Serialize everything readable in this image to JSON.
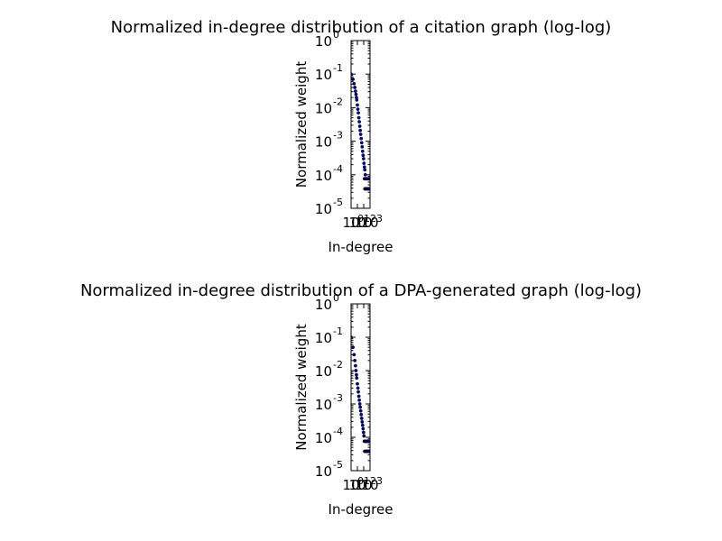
{
  "chart_data": [
    {
      "type": "scatter",
      "title": "Normalized in-degree distribution of a citation graph (log-log)",
      "xlabel": "In-degree",
      "ylabel": "Normalized weight",
      "xscale": "log",
      "yscale": "log",
      "xlim": [
        1,
        1000
      ],
      "ylim": [
        1e-05,
        1
      ],
      "x_tick_labels": [
        {
          "base": "10",
          "exp": "0"
        },
        {
          "base": "10",
          "exp": "1"
        },
        {
          "base": "10",
          "exp": "2"
        },
        {
          "base": "10",
          "exp": "3"
        }
      ],
      "y_tick_labels": [
        {
          "base": "10",
          "exp": "-5"
        },
        {
          "base": "10",
          "exp": "-4"
        },
        {
          "base": "10",
          "exp": "-3"
        },
        {
          "base": "10",
          "exp": "-2"
        },
        {
          "base": "10",
          "exp": "-1"
        },
        {
          "base": "10",
          "exp": "0"
        }
      ],
      "color": "#00007f",
      "series": [
        {
          "points": [
            [
              1,
              0.1
            ],
            [
              2,
              0.07
            ],
            [
              3,
              0.052
            ],
            [
              4,
              0.04
            ],
            [
              5,
              0.031
            ],
            [
              6,
              0.025
            ],
            [
              7,
              0.02
            ],
            [
              8,
              0.017
            ],
            [
              10,
              0.012
            ],
            [
              12,
              0.009
            ],
            [
              14,
              0.007
            ],
            [
              17,
              0.005
            ],
            [
              20,
              0.0038
            ],
            [
              24,
              0.0028
            ],
            [
              28,
              0.0021
            ],
            [
              33,
              0.0016
            ],
            [
              40,
              0.0012
            ],
            [
              48,
              0.0009
            ],
            [
              57,
              0.00068
            ],
            [
              68,
              0.0005
            ],
            [
              80,
              0.00038
            ],
            [
              95,
              0.0003
            ],
            [
              110,
              0.00022
            ],
            [
              130,
              0.00017
            ],
            [
              150,
              0.00014
            ],
            [
              180,
              0.0001
            ],
            [
              130,
              7.6e-05
            ],
            [
              160,
              7.6e-05
            ],
            [
              200,
              7.6e-05
            ],
            [
              260,
              7.6e-05
            ],
            [
              330,
              7.6e-05
            ],
            [
              420,
              7.6e-05
            ],
            [
              550,
              7.6e-05
            ],
            [
              700,
              7.6e-05
            ],
            [
              900,
              7.6e-05
            ],
            [
              150,
              3.8e-05
            ],
            [
              180,
              3.8e-05
            ],
            [
              220,
              3.8e-05
            ],
            [
              270,
              3.8e-05
            ],
            [
              340,
              3.8e-05
            ],
            [
              430,
              3.8e-05
            ],
            [
              550,
              3.8e-05
            ],
            [
              700,
              3.8e-05
            ],
            [
              900,
              3.8e-05
            ]
          ]
        }
      ]
    },
    {
      "type": "scatter",
      "title": "Normalized in-degree distribution of a DPA-generated graph (log-log)",
      "xlabel": "In-degree",
      "ylabel": "Normalized weight",
      "xscale": "log",
      "yscale": "log",
      "xlim": [
        1,
        1000
      ],
      "ylim": [
        1e-05,
        1
      ],
      "x_tick_labels": [
        {
          "base": "10",
          "exp": "0"
        },
        {
          "base": "10",
          "exp": "1"
        },
        {
          "base": "10",
          "exp": "2"
        },
        {
          "base": "10",
          "exp": "3"
        }
      ],
      "y_tick_labels": [
        {
          "base": "10",
          "exp": "-5"
        },
        {
          "base": "10",
          "exp": "-4"
        },
        {
          "base": "10",
          "exp": "-3"
        },
        {
          "base": "10",
          "exp": "-2"
        },
        {
          "base": "10",
          "exp": "-1"
        },
        {
          "base": "10",
          "exp": "0"
        }
      ],
      "color": "#00007f",
      "series": [
        {
          "points": [
            [
              1,
              0.1
            ],
            [
              2,
              0.05
            ],
            [
              3,
              0.03
            ],
            [
              4,
              0.02
            ],
            [
              5,
              0.014
            ],
            [
              6,
              0.01
            ],
            [
              7,
              0.0075
            ],
            [
              8,
              0.006
            ],
            [
              10,
              0.004
            ],
            [
              12,
              0.003
            ],
            [
              14,
              0.0023
            ],
            [
              17,
              0.0017
            ],
            [
              20,
              0.0013
            ],
            [
              24,
              0.001
            ],
            [
              28,
              0.0008
            ],
            [
              33,
              0.00062
            ],
            [
              40,
              0.00048
            ],
            [
              48,
              0.00037
            ],
            [
              57,
              0.00029
            ],
            [
              68,
              0.00023
            ],
            [
              80,
              0.00018
            ],
            [
              95,
              0.00014
            ],
            [
              110,
              0.00011
            ],
            [
              120,
              7.6e-05
            ],
            [
              150,
              7.6e-05
            ],
            [
              190,
              7.6e-05
            ],
            [
              240,
              7.6e-05
            ],
            [
              300,
              7.6e-05
            ],
            [
              380,
              7.6e-05
            ],
            [
              480,
              7.6e-05
            ],
            [
              600,
              7.6e-05
            ],
            [
              780,
              7.6e-05
            ],
            [
              140,
              3.8e-05
            ],
            [
              170,
              3.8e-05
            ],
            [
              210,
              3.8e-05
            ],
            [
              260,
              3.8e-05
            ],
            [
              330,
              3.8e-05
            ],
            [
              420,
              3.8e-05
            ],
            [
              540,
              3.8e-05
            ],
            [
              700,
              3.8e-05
            ],
            [
              900,
              3.8e-05
            ]
          ]
        }
      ]
    }
  ]
}
